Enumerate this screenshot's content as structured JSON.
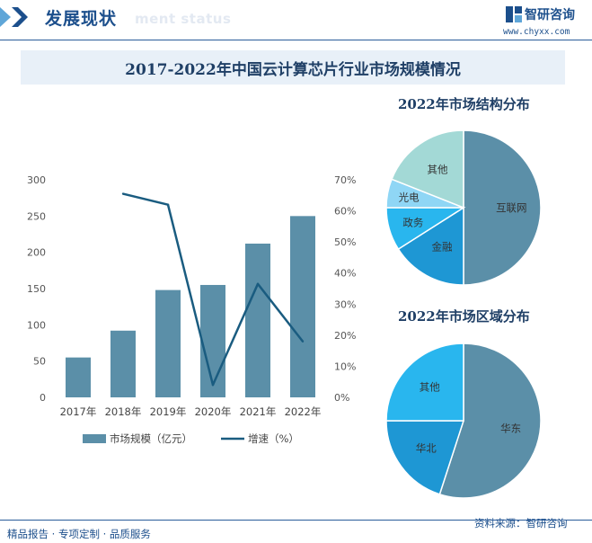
{
  "header": {
    "section_title": "发展现状",
    "section_subtitle": "ment status",
    "brand": "智研咨询",
    "website": "www.chyxx.com"
  },
  "footer": {
    "services": "精品报告 · 专项定制 · 品质服务",
    "source": "资料来源：智研咨询"
  },
  "colors": {
    "bar": "#5b8fa8",
    "line": "#1a5c80",
    "brand": "#1c4f8c"
  },
  "chart_data": [
    {
      "type": "bar",
      "title": "2017-2022年中国云计算芯片行业市场规模情况",
      "categories": [
        "2017年",
        "2018年",
        "2019年",
        "2020年",
        "2021年",
        "2022年"
      ],
      "series": [
        {
          "name": "市场规模（亿元）",
          "type": "bar",
          "axis": "left",
          "values": [
            55,
            92,
            148,
            155,
            212,
            250
          ]
        },
        {
          "name": "增速（%）",
          "type": "line",
          "axis": "right",
          "values": [
            null,
            65.5,
            62,
            4,
            36.5,
            18
          ]
        }
      ],
      "y_left": {
        "ticks": [
          0,
          50,
          100,
          150,
          200,
          250,
          300
        ],
        "range": [
          0,
          300
        ]
      },
      "y_right": {
        "ticks": [
          "0%",
          "10%",
          "20%",
          "30%",
          "40%",
          "50%",
          "60%",
          "70%"
        ],
        "range": [
          0,
          70
        ]
      },
      "grid": false,
      "legend": "bottom"
    },
    {
      "type": "pie",
      "title": "2022年市场结构分布",
      "labels": [
        "互联网",
        "金融",
        "政务",
        "光电",
        "其他"
      ],
      "values": [
        50,
        16,
        9,
        6,
        19
      ],
      "colors": [
        "#5b8fa8",
        "#1e97d4",
        "#29b6ee",
        "#8fd6f5",
        "#a3d9d6"
      ]
    },
    {
      "type": "pie",
      "title": "2022年市场区域分布",
      "labels": [
        "华东",
        "华北",
        "其他"
      ],
      "values": [
        55,
        20,
        25
      ],
      "colors": [
        "#5b8fa8",
        "#1e97d4",
        "#29b6ee"
      ]
    }
  ]
}
